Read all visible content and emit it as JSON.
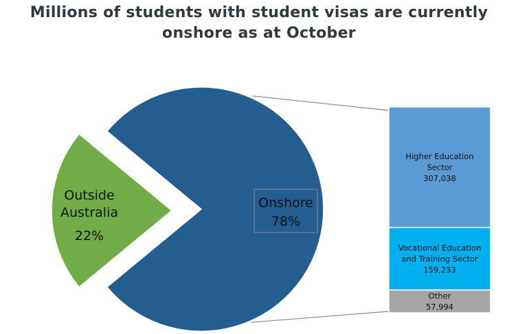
{
  "chart_data": {
    "type": "pie",
    "title": "Millions of students with student visas are currently onshore as at October",
    "slices": [
      {
        "name": "Onshore",
        "percent": "78%",
        "value": 78,
        "color": "#245d8f"
      },
      {
        "name": "Outside Australia",
        "name_lines": [
          "Outside",
          "Australia"
        ],
        "percent": "22%",
        "value": 22,
        "color": "#70ad47"
      }
    ],
    "breakdown": {
      "type": "stacked-bar",
      "parent": "Onshore",
      "items": [
        {
          "name_lines": [
            "Higher Education",
            "Sector"
          ],
          "value": 307038,
          "label": "307,038",
          "color": "#5b9bd5"
        },
        {
          "name_lines": [
            "Vocational Education",
            "and Training Sector"
          ],
          "value": 159233,
          "label": "159,233",
          "color": "#00b0f0"
        },
        {
          "name_lines": [
            "Other"
          ],
          "value": 57994,
          "label": "57,994",
          "color": "#a5a5a5"
        }
      ]
    }
  }
}
